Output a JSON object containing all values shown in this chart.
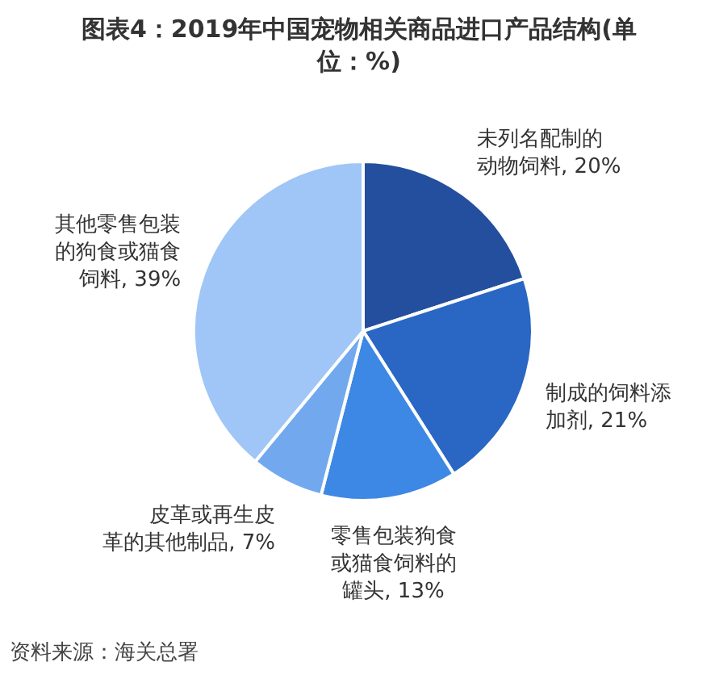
{
  "chart_data": {
    "type": "pie",
    "title": "图表4：2019年中国宠物相关商品进口产品结构(单位：%)",
    "categories": [
      "未列名配制的动物饲料",
      "制成的饲料添加剂",
      "零售包装狗食或猫食饲料的罐头",
      "皮革或再生皮革的其他制品",
      "其他零售包装的狗食或猫食饲料"
    ],
    "values": [
      20,
      21,
      13,
      7,
      39
    ],
    "colors": [
      "#234f9e",
      "#2a66c4",
      "#3d88e4",
      "#72a9ee",
      "#9fc6f6"
    ],
    "value_labels": [
      "20%",
      "21%",
      "13%",
      "7%",
      "39%"
    ],
    "annotations": [
      "资料来源：海关总署"
    ]
  }
}
